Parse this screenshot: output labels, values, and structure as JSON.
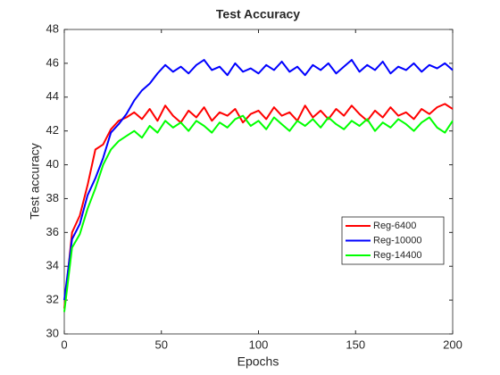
{
  "chart_data": {
    "type": "line",
    "title": "Test Accuracy",
    "xlabel": "Epochs",
    "ylabel": "Test accuracy",
    "x": [
      0,
      4,
      8,
      12,
      16,
      20,
      24,
      28,
      32,
      36,
      40,
      44,
      48,
      52,
      56,
      60,
      64,
      68,
      72,
      76,
      80,
      84,
      88,
      92,
      96,
      100,
      104,
      108,
      112,
      116,
      120,
      124,
      128,
      132,
      136,
      140,
      144,
      148,
      152,
      156,
      160,
      164,
      168,
      172,
      176,
      180,
      184,
      188,
      192,
      196,
      200
    ],
    "series": [
      {
        "name": "Reg-6400",
        "color": "#ff0000",
        "values": [
          31.5,
          36,
          37,
          38.8,
          40.9,
          41.2,
          42.1,
          42.6,
          42.8,
          43.1,
          42.7,
          43.3,
          42.6,
          43.5,
          42.9,
          42.5,
          43.2,
          42.8,
          43.4,
          42.6,
          43.1,
          42.9,
          43.3,
          42.5,
          43.0,
          43.2,
          42.7,
          43.4,
          42.9,
          43.1,
          42.6,
          43.5,
          42.8,
          43.2,
          42.7,
          43.3,
          42.9,
          43.5,
          43.0,
          42.6,
          43.2,
          42.8,
          43.4,
          42.9,
          43.1,
          42.7,
          43.3,
          43.0,
          43.4,
          43.6,
          43.3
        ]
      },
      {
        "name": "Reg-10000",
        "color": "#0000ff",
        "values": [
          32,
          35.6,
          36.5,
          38.2,
          39.2,
          40.4,
          41.9,
          42.4,
          43.0,
          43.8,
          44.4,
          44.8,
          45.4,
          45.9,
          45.5,
          45.8,
          45.4,
          45.9,
          46.2,
          45.6,
          45.8,
          45.3,
          46.0,
          45.5,
          45.7,
          45.4,
          45.9,
          45.6,
          46.1,
          45.5,
          45.8,
          45.3,
          45.9,
          45.6,
          46.0,
          45.4,
          45.8,
          46.2,
          45.5,
          45.9,
          45.6,
          46.1,
          45.4,
          45.8,
          45.6,
          46.0,
          45.5,
          45.9,
          45.7,
          46.0,
          45.6
        ]
      },
      {
        "name": "Reg-14400",
        "color": "#00ff00",
        "values": [
          31.3,
          35.1,
          35.9,
          37.4,
          38.6,
          40.0,
          40.9,
          41.4,
          41.7,
          42.0,
          41.6,
          42.3,
          41.9,
          42.6,
          42.2,
          42.5,
          42.0,
          42.6,
          42.3,
          41.9,
          42.5,
          42.2,
          42.7,
          42.9,
          42.3,
          42.6,
          42.1,
          42.8,
          42.4,
          42.0,
          42.6,
          42.3,
          42.7,
          42.2,
          42.8,
          42.4,
          42.1,
          42.6,
          42.3,
          42.7,
          42.0,
          42.5,
          42.2,
          42.7,
          42.4,
          42.0,
          42.5,
          42.8,
          42.2,
          41.9,
          42.6
        ]
      }
    ],
    "xlim": [
      0,
      200
    ],
    "xticks": [
      0,
      50,
      100,
      150,
      200
    ],
    "ylim": [
      30,
      48
    ],
    "yticks": [
      30,
      32,
      34,
      36,
      38,
      40,
      42,
      44,
      46,
      48
    ],
    "grid": false,
    "legend": "east"
  }
}
